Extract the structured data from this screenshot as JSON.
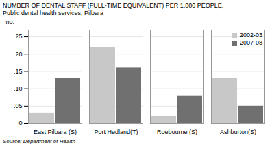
{
  "chart_data": {
    "type": "bar",
    "title": "NUMBER OF DENTAL STAFF (FULL-TIME EQUIVALENT) PER 1,000 PEOPLE,",
    "subtitle": "Public dental health services, Pilbara",
    "caption": "Source: Department of Health",
    "ylabel": "no.",
    "categories": [
      "East Pilbara (S)",
      "Port Hedland(T)",
      "Roebourne (S)",
      "Ashburton(S)"
    ],
    "series": [
      {
        "name": "2002-03",
        "color": "#c8c8c8",
        "values": [
          0.03,
          0.22,
          0.02,
          0.13
        ]
      },
      {
        "name": "2007-08",
        "color": "#707070",
        "values": [
          0.13,
          0.16,
          0.08,
          0.05
        ]
      }
    ],
    "ylim": [
      0,
      0.27
    ],
    "yticks": [
      0,
      {
        "value": 0.05,
        "label": ".05"
      },
      {
        "value": 0.1,
        "label": ".10"
      },
      {
        "value": 0.15,
        "label": ".15"
      },
      {
        "value": 0.2,
        "label": ".20"
      },
      {
        "value": 0.25,
        "label": ".25"
      }
    ],
    "grid": true,
    "legend": "upper right"
  }
}
